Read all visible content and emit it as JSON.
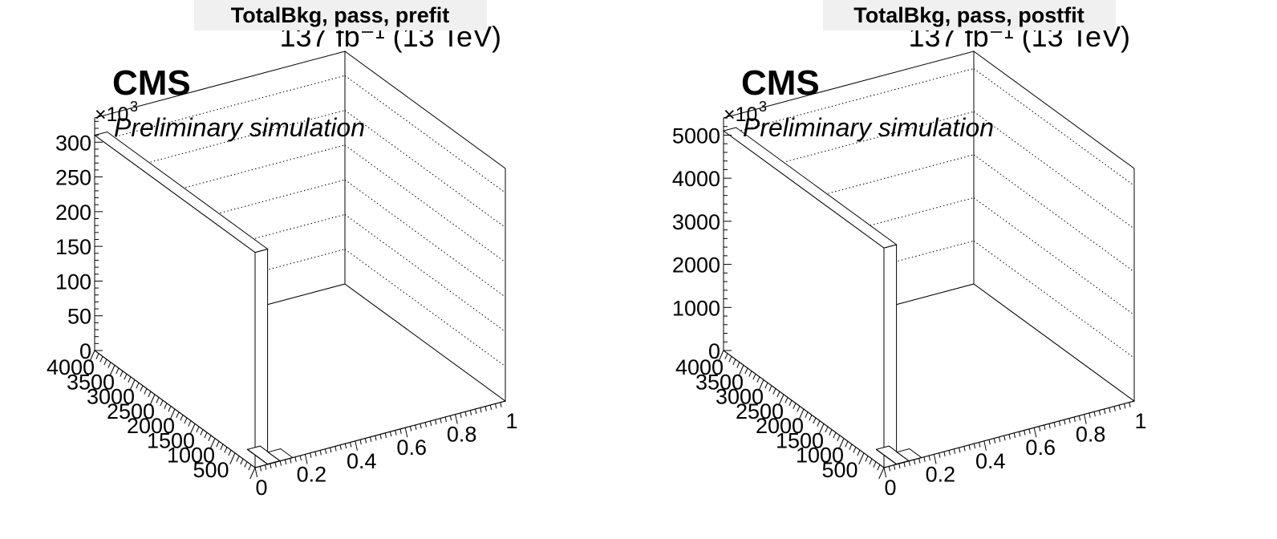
{
  "chart_data": [
    {
      "type": "bar3d",
      "title": "TotalBkg, pass, prefit",
      "lumi_label": "137 fb⁻¹ (13 TeV)",
      "cms_label": "CMS",
      "sub_label": "Preliminary simulation",
      "z_multiplier": "×10",
      "z_multiplier_exp": "3",
      "x_ticks": [
        "0",
        "0.2",
        "0.4",
        "0.6",
        "0.8",
        "1"
      ],
      "y_ticks": [
        "500",
        "1000",
        "1500",
        "2000",
        "2500",
        "3000",
        "3500",
        "4000"
      ],
      "z_ticks": [
        "0",
        "50",
        "100",
        "150",
        "200",
        "250",
        "300"
      ],
      "xlim": [
        0,
        1
      ],
      "ylim": [
        0,
        4000
      ],
      "zlim": [
        0,
        335000
      ],
      "grid": true,
      "bars": [
        {
          "x": [
            0,
            0.05
          ],
          "y": [
            0,
            4000
          ],
          "value": 310000
        },
        {
          "x": [
            0.05,
            0.1
          ],
          "y": [
            0,
            500
          ],
          "value": 400
        },
        {
          "x": [
            0.1,
            0.15
          ],
          "y": [
            0,
            300
          ],
          "value": 100
        }
      ]
    },
    {
      "type": "bar3d",
      "title": "TotalBkg, pass, postfit",
      "lumi_label": "137 fb⁻¹ (13 TeV)",
      "cms_label": "CMS",
      "sub_label": "Preliminary simulation",
      "z_multiplier": "×10",
      "z_multiplier_exp": "3",
      "x_ticks": [
        "0",
        "0.2",
        "0.4",
        "0.6",
        "0.8",
        "1"
      ],
      "y_ticks": [
        "500",
        "1000",
        "1500",
        "2000",
        "2500",
        "3000",
        "3500",
        "4000"
      ],
      "z_ticks": [
        "0",
        "1000",
        "2000",
        "3000",
        "4000",
        "5000"
      ],
      "xlim": [
        0,
        1
      ],
      "ylim": [
        0,
        4000
      ],
      "zlim": [
        0,
        5400000
      ],
      "grid": true,
      "bars": [
        {
          "x": [
            0,
            0.05
          ],
          "y": [
            0,
            4000
          ],
          "value": 5100000
        },
        {
          "x": [
            0.05,
            0.1
          ],
          "y": [
            0,
            500
          ],
          "value": 6000
        },
        {
          "x": [
            0.1,
            0.15
          ],
          "y": [
            0,
            300
          ],
          "value": 1500
        }
      ]
    }
  ]
}
